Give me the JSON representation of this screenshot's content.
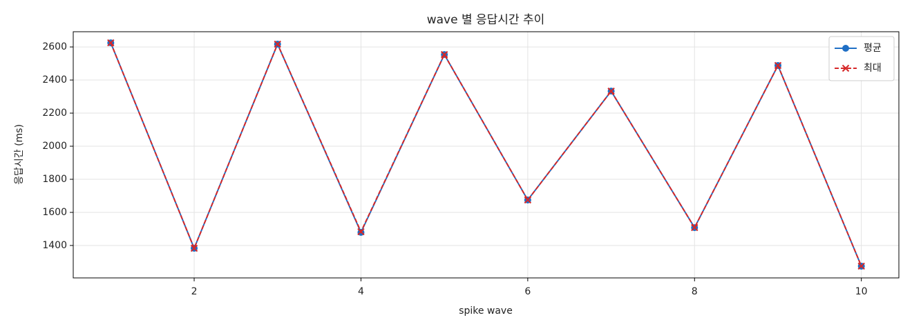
{
  "chart_data": {
    "type": "line",
    "title": "wave 별 응답시간 추이",
    "xlabel": "spike wave",
    "ylabel": "응답시간 (ms)",
    "x": [
      1,
      2,
      3,
      4,
      5,
      6,
      7,
      8,
      9,
      10
    ],
    "series": [
      {
        "name": "평균",
        "color": "#1f6fc5",
        "marker": "circle",
        "dash": false,
        "values": [
          2625,
          1383,
          2617,
          1479,
          2554,
          1675,
          2333,
          1508,
          2488,
          1275
        ]
      },
      {
        "name": "최대",
        "color": "#d62728",
        "marker": "x",
        "dash": true,
        "values": [
          2625,
          1383,
          2617,
          1483,
          2554,
          1675,
          2333,
          1508,
          2488,
          1275
        ]
      }
    ],
    "xlim": [
      0.55,
      10.45
    ],
    "xticks": [
      2,
      4,
      6,
      8,
      10
    ],
    "ylim": [
      1204,
      2692
    ],
    "yticks": [
      1400,
      1600,
      1800,
      2000,
      2200,
      2400,
      2600
    ],
    "grid": true,
    "legend": "upper right"
  }
}
